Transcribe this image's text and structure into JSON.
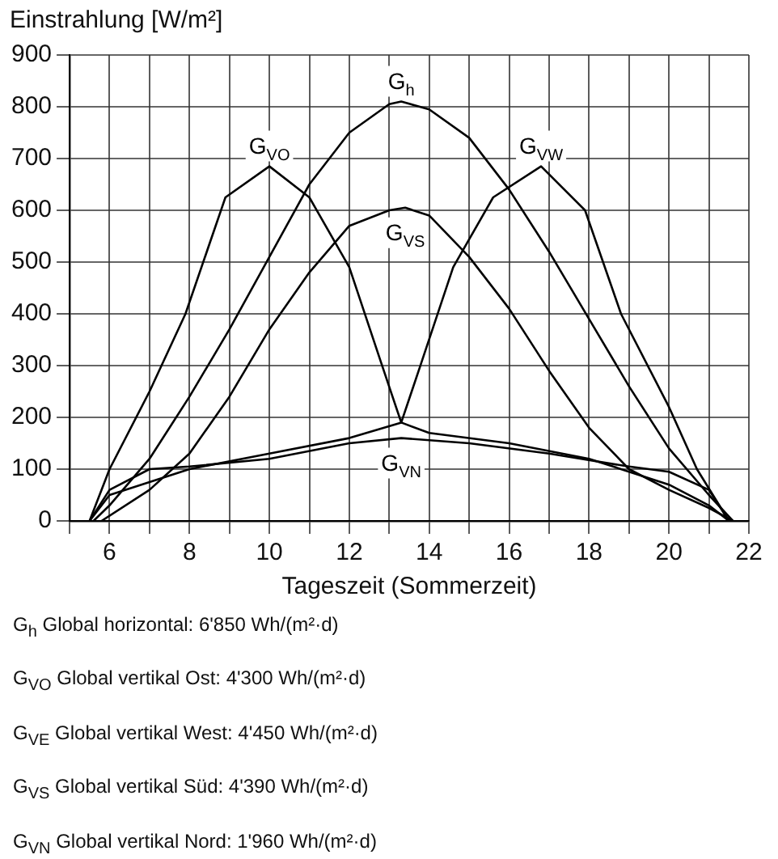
{
  "chart_data": {
    "type": "line",
    "ylabel": "Einstrahlung [W/m²]",
    "xlabel": "Tageszeit (Sommerzeit)",
    "xlim": [
      5,
      22
    ],
    "xticks": [
      {
        "value": 5,
        "label": null
      },
      6,
      {
        "value": 7,
        "label": null
      },
      8,
      {
        "value": 9,
        "label": null
      },
      10,
      {
        "value": 11,
        "label": null
      },
      12,
      {
        "value": 13,
        "label": null
      },
      14,
      {
        "value": 15,
        "label": null
      },
      16,
      {
        "value": 17,
        "label": null
      },
      18,
      {
        "value": 19,
        "label": null
      },
      20,
      {
        "value": 21,
        "label": null
      },
      22
    ],
    "ylim": [
      0,
      900
    ],
    "yticks": [
      0,
      100,
      200,
      300,
      400,
      500,
      600,
      700,
      800,
      900
    ],
    "grid": true,
    "legend": false,
    "marker": "none",
    "series": [
      {
        "name": "G$_{h}$",
        "color": "#000000",
        "x": [
          5.6,
          6,
          7,
          8,
          9,
          10,
          11,
          12,
          13,
          13.3,
          14,
          15,
          16,
          17,
          18,
          19,
          20,
          21,
          21.6
        ],
        "values": [
          0,
          30,
          120,
          240,
          370,
          510,
          650,
          750,
          805,
          810,
          795,
          740,
          640,
          520,
          390,
          260,
          140,
          50,
          0
        ]
      },
      {
        "name": "G$_{VO}$",
        "color": "#000000",
        "x": [
          5.5,
          6,
          7,
          7.9,
          8.9,
          10,
          11,
          12,
          12.8,
          13.3,
          14,
          16,
          18,
          20,
          21,
          21.5
        ],
        "values": [
          0,
          100,
          250,
          400,
          625,
          685,
          625,
          490,
          305,
          190,
          170,
          150,
          120,
          70,
          30,
          0
        ]
      },
      {
        "name": "G$_{VS}$",
        "color": "#000000",
        "x": [
          5.8,
          7,
          8,
          9,
          10,
          11,
          12,
          13,
          13.4,
          14,
          15,
          16,
          17,
          18,
          19,
          20,
          21,
          21.6
        ],
        "values": [
          0,
          60,
          130,
          240,
          370,
          480,
          570,
          600,
          605,
          590,
          510,
          410,
          290,
          180,
          100,
          60,
          25,
          0
        ]
      },
      {
        "name": "G$_{VW}$",
        "color": "#000000",
        "x": [
          5.5,
          6,
          8,
          10,
          12,
          13.3,
          13.8,
          14.6,
          15.6,
          16.8,
          17.9,
          18.8,
          20,
          20.7,
          21.5
        ],
        "values": [
          0,
          50,
          100,
          130,
          160,
          190,
          305,
          490,
          625,
          685,
          600,
          400,
          220,
          100,
          0
        ]
      },
      {
        "name": "G$_{VN}$",
        "color": "#000000",
        "x": [
          5.5,
          6,
          7,
          8,
          10,
          12,
          13.3,
          15,
          17,
          19,
          20,
          21,
          21.5
        ],
        "values": [
          0,
          60,
          100,
          105,
          120,
          150,
          160,
          150,
          130,
          105,
          95,
          60,
          0
        ]
      }
    ],
    "annotations": [
      "G$_{h}$ Global horizontal: 6'850 Wh/(m²·d)",
      "G$_{VO}$ Global vertikal Ost: 4'300 Wh/(m²·d)",
      "G$_{VE}$ Global vertikal West: 4'450 Wh/(m²·d)",
      "G$_{VS}$ Global vertikal Süd: 4'390 Wh/(m²·d)",
      "G$_{VN}$ Global vertikal Nord: 1'960 Wh/(m²·d)"
    ]
  }
}
